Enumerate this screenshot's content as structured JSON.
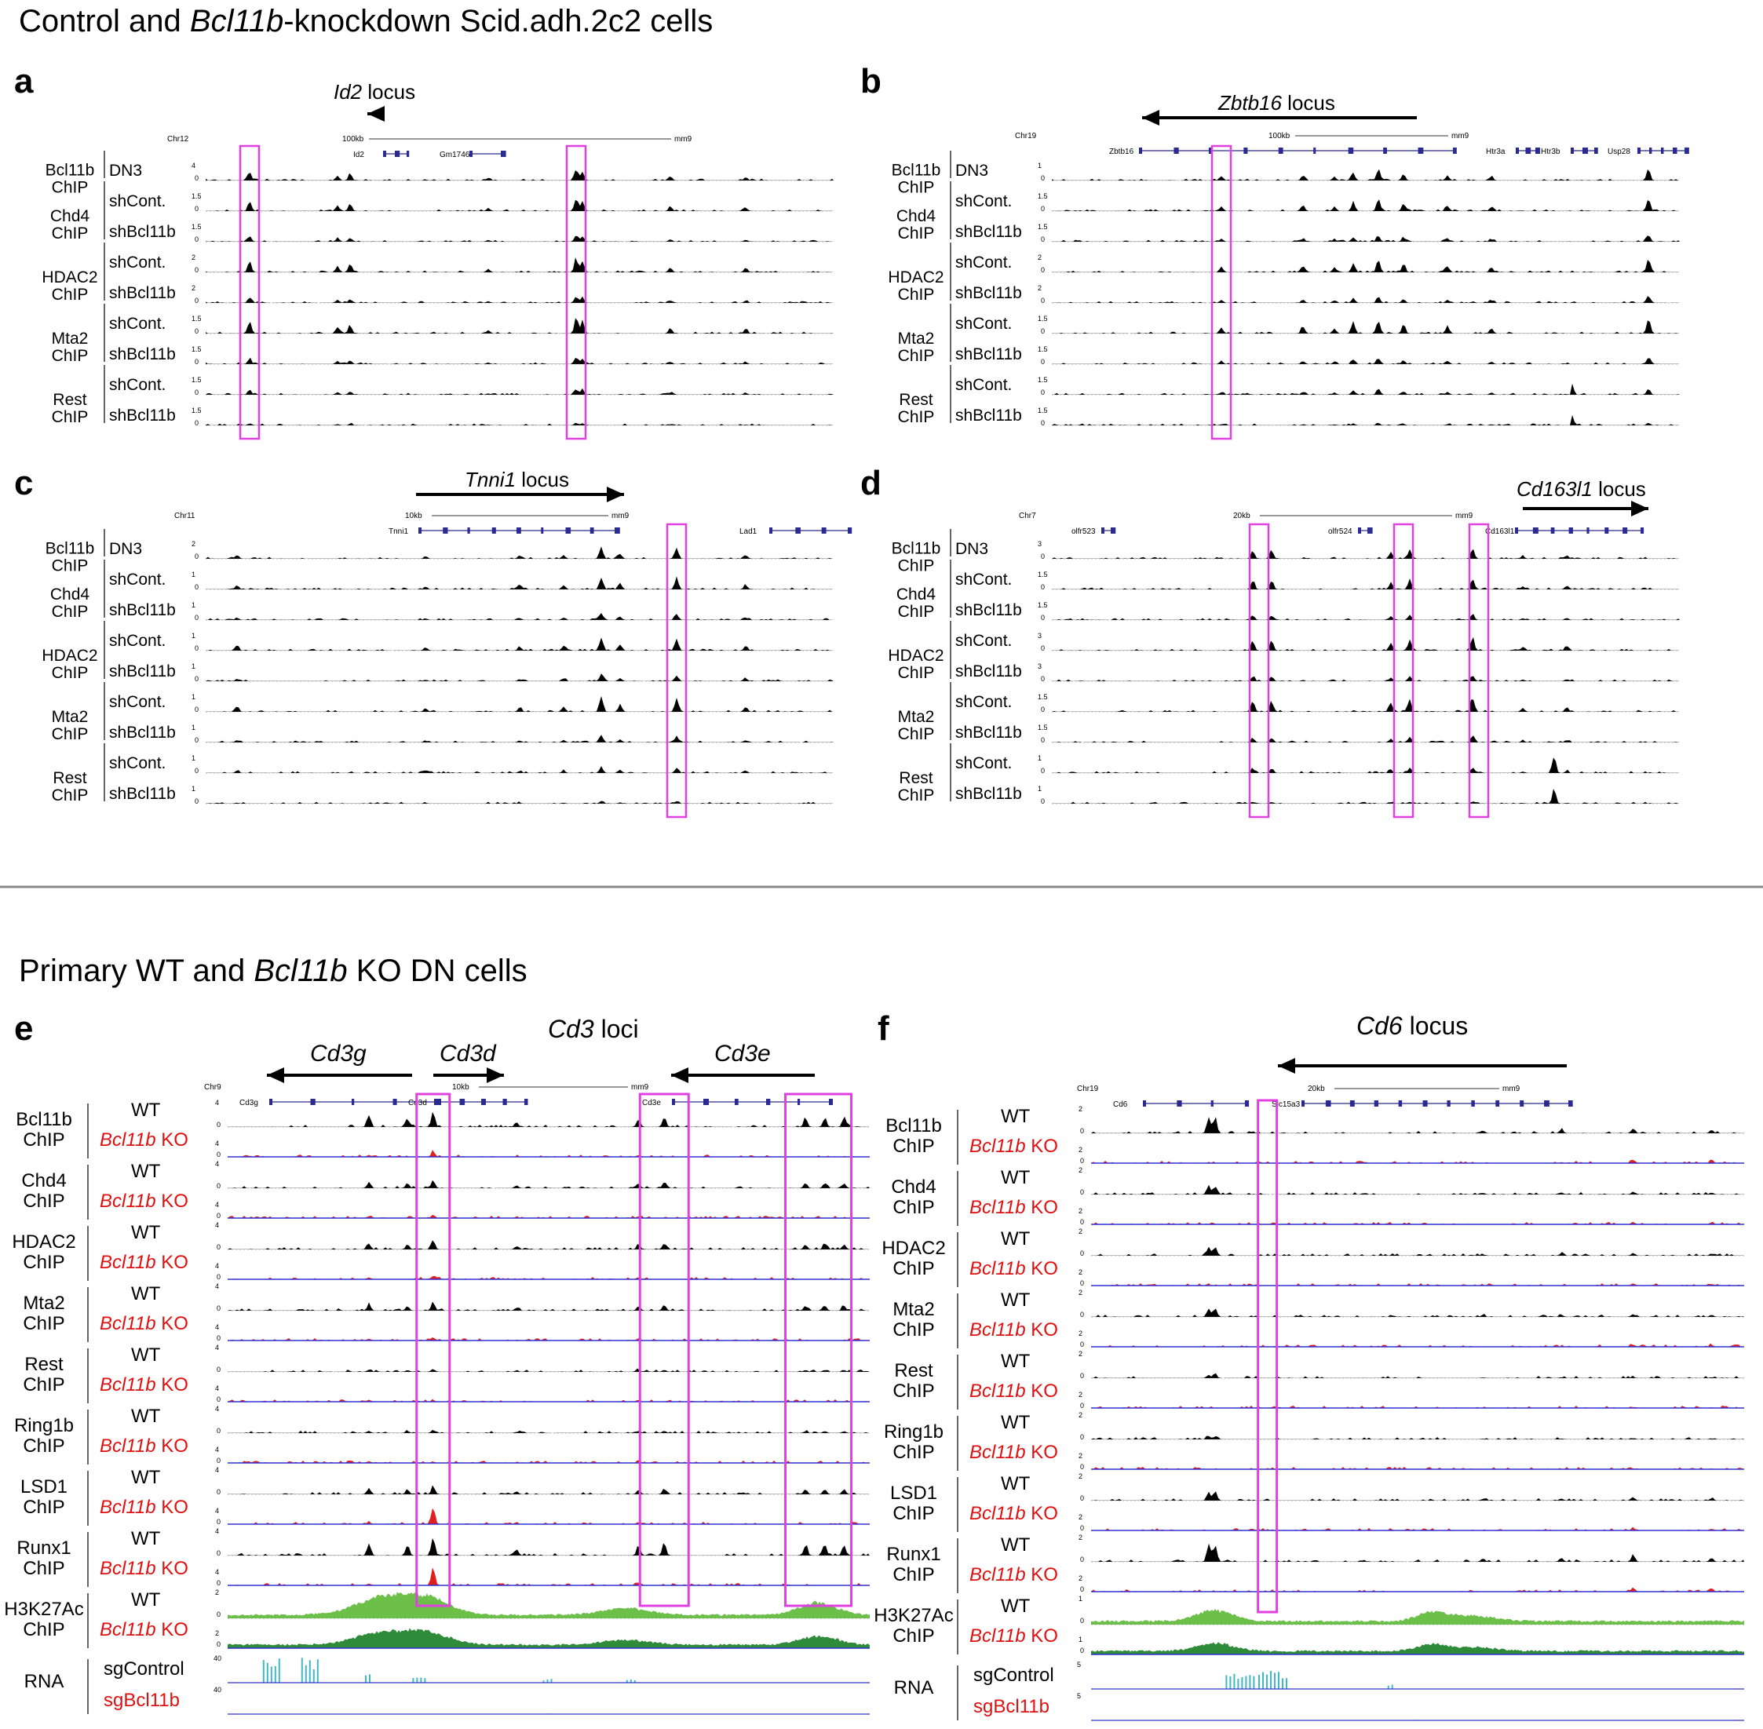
{
  "figure": {
    "title_top_plain_1": "Control and ",
    "title_top_italic": "Bcl11b",
    "title_top_plain_2": "-knockdown Scid.adh.2c2 cells",
    "title_bottom_plain_1": "Primary WT and ",
    "title_bottom_italic": "Bcl11b",
    "title_bottom_plain_2": " KO DN cells",
    "colors": {
      "highlight": "#e040e0",
      "signal": "#000000",
      "ko_signal": "#e02020",
      "baseline_blue": "#3030d0",
      "h3k27ac_wt": "#6cc04a",
      "h3k27ac_ko": "#2e8b3a",
      "rna": "#40b8c8",
      "gene_model": "#2a2a90",
      "ko_label": "#e01010",
      "divider": "#888888"
    }
  },
  "panels": [
    {
      "letter": "a",
      "locus_italic": "Id2",
      "locus_plain": " locus",
      "arrow_dir": "left",
      "chrom": "Chr12",
      "scale_label": "100kb",
      "assembly": "mm9",
      "genes": [
        "Id2",
        "Gm1746"
      ],
      "highlights": [
        0.07,
        0.59
      ],
      "groups": [
        {
          "name": "Bcl11b",
          "sub": "ChIP",
          "conds": [
            "DN3"
          ]
        },
        {
          "name": "Chd4",
          "sub": "ChIP",
          "conds": [
            "shCont.",
            "shBcl11b"
          ]
        },
        {
          "name": "HDAC2",
          "sub": "ChIP",
          "conds": [
            "shCont.",
            "shBcl11b"
          ]
        },
        {
          "name": "Mta2",
          "sub": "ChIP",
          "conds": [
            "shCont.",
            "shBcl11b"
          ]
        },
        {
          "name": "Rest",
          "sub": "ChIP",
          "conds": [
            "shCont.",
            "shBcl11b"
          ]
        }
      ],
      "scales": [
        "4",
        "1.5",
        "1.5",
        "2",
        "2",
        "1.5",
        "1.5",
        "1.5",
        "1.5"
      ]
    },
    {
      "letter": "b",
      "locus_italic": "Zbtb16",
      "locus_plain": " locus",
      "arrow_dir": "left",
      "chrom": "Chr19",
      "scale_label": "100kb",
      "assembly": "mm9",
      "genes": [
        "Zbtb16",
        "Htr3a",
        "Htr3b",
        "Usp28"
      ],
      "highlights": [
        0.27
      ],
      "groups": [
        {
          "name": "Bcl11b",
          "sub": "ChIP",
          "conds": [
            "DN3"
          ]
        },
        {
          "name": "Chd4",
          "sub": "ChIP",
          "conds": [
            "shCont.",
            "shBcl11b"
          ]
        },
        {
          "name": "HDAC2",
          "sub": "ChIP",
          "conds": [
            "shCont.",
            "shBcl11b"
          ]
        },
        {
          "name": "Mta2",
          "sub": "ChIP",
          "conds": [
            "shCont.",
            "shBcl11b"
          ]
        },
        {
          "name": "Rest",
          "sub": "ChIP",
          "conds": [
            "shCont.",
            "shBcl11b"
          ]
        }
      ],
      "scales": [
        "1",
        "1.5",
        "1.5",
        "2",
        "2",
        "1.5",
        "1.5",
        "1.5",
        "1.5"
      ]
    },
    {
      "letter": "c",
      "locus_italic": "Tnni1",
      "locus_plain": " locus",
      "arrow_dir": "right",
      "chrom": "Chr11",
      "scale_label": "10kb",
      "assembly": "mm9",
      "genes": [
        "Tnni1",
        "Lad1"
      ],
      "highlights": [
        0.75
      ],
      "groups": [
        {
          "name": "Bcl11b",
          "sub": "ChIP",
          "conds": [
            "DN3"
          ]
        },
        {
          "name": "Chd4",
          "sub": "ChIP",
          "conds": [
            "shCont.",
            "shBcl11b"
          ]
        },
        {
          "name": "HDAC2",
          "sub": "ChIP",
          "conds": [
            "shCont.",
            "shBcl11b"
          ]
        },
        {
          "name": "Mta2",
          "sub": "ChIP",
          "conds": [
            "shCont.",
            "shBcl11b"
          ]
        },
        {
          "name": "Rest",
          "sub": "ChIP",
          "conds": [
            "shCont.",
            "shBcl11b"
          ]
        }
      ],
      "scales": [
        "2",
        "1",
        "1",
        "1",
        "1",
        "1",
        "1",
        "1",
        "1"
      ]
    },
    {
      "letter": "d",
      "locus_italic": "Cd163l1",
      "locus_plain": " locus",
      "arrow_dir": "right",
      "chrom": "Chr7",
      "scale_label": "20kb",
      "assembly": "mm9",
      "genes": [
        "olfr523",
        "olfr524",
        "Cd163l1"
      ],
      "highlights": [
        0.33,
        0.56,
        0.68
      ],
      "groups": [
        {
          "name": "Bcl11b",
          "sub": "ChIP",
          "conds": [
            "DN3"
          ]
        },
        {
          "name": "Chd4",
          "sub": "ChIP",
          "conds": [
            "shCont.",
            "shBcl11b"
          ]
        },
        {
          "name": "HDAC2",
          "sub": "ChIP",
          "conds": [
            "shCont.",
            "shBcl11b"
          ]
        },
        {
          "name": "Mta2",
          "sub": "ChIP",
          "conds": [
            "shCont.",
            "shBcl11b"
          ]
        },
        {
          "name": "Rest",
          "sub": "ChIP",
          "conds": [
            "shCont.",
            "shBcl11b"
          ]
        }
      ],
      "scales": [
        "3",
        "1.5",
        "1.5",
        "3",
        "3",
        "1.5",
        "1.5",
        "1",
        "1"
      ]
    },
    {
      "letter": "e",
      "locus_italic": "Cd3",
      "locus_plain": " loci",
      "chrom": "Chr9",
      "scale_label": "10kb",
      "assembly": "mm9",
      "genes": [
        "Cd3g",
        "Cd3d",
        "Cd3e"
      ],
      "subloci": [
        {
          "name": "Cd3g",
          "dir": "left"
        },
        {
          "name": "Cd3d",
          "dir": "right"
        },
        {
          "name": "Cd3e",
          "dir": "left"
        }
      ],
      "highlights": [
        0.32,
        0.68,
        0.92
      ],
      "groups": [
        {
          "name": "Bcl11b",
          "sub": "ChIP",
          "wt": "WT",
          "ko_italic": "Bcl11b",
          "ko_plain": " KO"
        },
        {
          "name": "Chd4",
          "sub": "ChIP",
          "wt": "WT",
          "ko_italic": "Bcl11b",
          "ko_plain": " KO"
        },
        {
          "name": "HDAC2",
          "sub": "ChIP",
          "wt": "WT",
          "ko_italic": "Bcl11b",
          "ko_plain": " KO"
        },
        {
          "name": "Mta2",
          "sub": "ChIP",
          "wt": "WT",
          "ko_italic": "Bcl11b",
          "ko_plain": " KO"
        },
        {
          "name": "Rest",
          "sub": "ChIP",
          "wt": "WT",
          "ko_italic": "Bcl11b",
          "ko_plain": " KO"
        },
        {
          "name": "Ring1b",
          "sub": "ChIP",
          "wt": "WT",
          "ko_italic": "Bcl11b",
          "ko_plain": " KO"
        },
        {
          "name": "LSD1",
          "sub": "ChIP",
          "wt": "WT",
          "ko_italic": "Bcl11b",
          "ko_plain": " KO"
        },
        {
          "name": "Runx1",
          "sub": "ChIP",
          "wt": "WT",
          "ko_italic": "Bcl11b",
          "ko_plain": " KO"
        },
        {
          "name": "H3K27Ac",
          "sub": "ChIP",
          "wt": "WT",
          "ko_italic": "Bcl11b",
          "ko_plain": " KO"
        }
      ],
      "rna": {
        "name": "RNA",
        "wt": "sgControl",
        "ko": "sgBcl11b",
        "scale": "40"
      },
      "scales": [
        "4",
        "4",
        "4",
        "4",
        "4",
        "4",
        "4",
        "4",
        "2"
      ]
    },
    {
      "letter": "f",
      "locus_italic": "Cd6",
      "locus_plain": " locus",
      "arrow_dir": "left",
      "chrom": "Chr19",
      "scale_label": "20kb",
      "assembly": "mm9",
      "genes": [
        "Cd6",
        "Slc15a3"
      ],
      "highlights": [
        0.27
      ],
      "groups": [
        {
          "name": "Bcl11b",
          "sub": "ChIP",
          "wt": "WT",
          "ko_italic": "Bcl11b",
          "ko_plain": " KO"
        },
        {
          "name": "Chd4",
          "sub": "ChIP",
          "wt": "WT",
          "ko_italic": "Bcl11b",
          "ko_plain": " KO"
        },
        {
          "name": "HDAC2",
          "sub": "ChIP",
          "wt": "WT",
          "ko_italic": "Bcl11b",
          "ko_plain": " KO"
        },
        {
          "name": "Mta2",
          "sub": "ChIP",
          "wt": "WT",
          "ko_italic": "Bcl11b",
          "ko_plain": " KO"
        },
        {
          "name": "Rest",
          "sub": "ChIP",
          "wt": "WT",
          "ko_italic": "Bcl11b",
          "ko_plain": " KO"
        },
        {
          "name": "Ring1b",
          "sub": "ChIP",
          "wt": "WT",
          "ko_italic": "Bcl11b",
          "ko_plain": " KO"
        },
        {
          "name": "LSD1",
          "sub": "ChIP",
          "wt": "WT",
          "ko_italic": "Bcl11b",
          "ko_plain": " KO"
        },
        {
          "name": "Runx1",
          "sub": "ChIP",
          "wt": "WT",
          "ko_italic": "Bcl11b",
          "ko_plain": " KO"
        },
        {
          "name": "H3K27Ac",
          "sub": "ChIP",
          "wt": "WT",
          "ko_italic": "Bcl11b",
          "ko_plain": " KO"
        }
      ],
      "rna": {
        "name": "RNA",
        "wt": "sgControl",
        "ko": "sgBcl11b",
        "scale": "5"
      },
      "scales": [
        "2",
        "2",
        "2",
        "2",
        "2",
        "2",
        "2",
        "2",
        "1"
      ]
    }
  ]
}
